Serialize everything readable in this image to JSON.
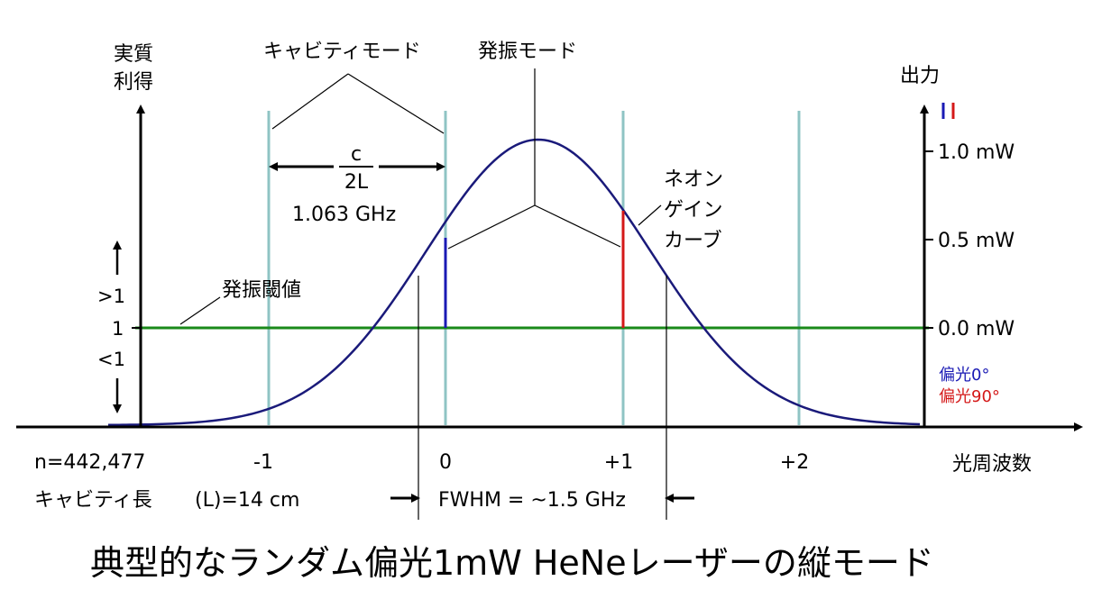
{
  "title": "典型的なランダム偏光1mW HeNeレーザーの縦モード",
  "left_axis": {
    "label_line1": "実質",
    "label_line2": "利得"
  },
  "right_axis": {
    "label": "出力"
  },
  "x_axis": {
    "label": "光周波数"
  },
  "labels": {
    "cavity_modes": "キャビティモード",
    "lasing_modes": "発振モード",
    "threshold": "発振閾値",
    "gain_curve_line1": "ネオン",
    "gain_curve_line2": "ゲイン",
    "gain_curve_line3": "カーブ",
    "spacing_numerator": "c",
    "spacing_denominator": "2L",
    "spacing_value": "1.063 GHz",
    "gain_gt": ">1",
    "gain_one": "1",
    "gain_lt": "<1",
    "mode_number": "n=442,477",
    "cavity_length_label": "キャビティ長",
    "cavity_length_value": "(L)=14 cm",
    "fwhm": "FWHM = ~1.5 GHz"
  },
  "right_ticks": [
    "1.0 mW",
    "0.5 mW",
    "0.0 mW"
  ],
  "x_ticks": [
    "-1",
    "0",
    "+1",
    "+2"
  ],
  "legend": [
    {
      "label": "偏光0°",
      "color": "#1a1ab4"
    },
    {
      "label": "偏光90°",
      "color": "#d41818"
    }
  ],
  "colors": {
    "gain_curve": "#1a1a7a",
    "threshold_line": "#1a8a1a",
    "cavity_mode_lines": "#8fc4c4",
    "pol0": "#1a1ab4",
    "pol90": "#d41818"
  }
}
